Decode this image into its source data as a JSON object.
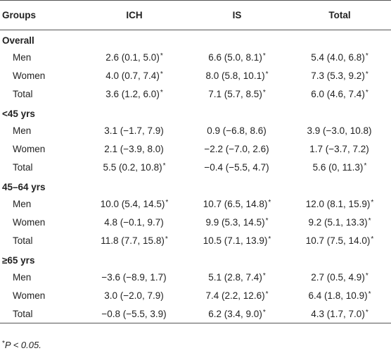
{
  "header": {
    "groups": "Groups",
    "ich": "ICH",
    "is": "IS",
    "total": "Total"
  },
  "sections": [
    {
      "title": "Overall",
      "rows": [
        {
          "label": "Men",
          "ich": "2.6 (0.1, 5.0)",
          "ich_sig": "*",
          "is": "6.6 (5.0, 8.1)",
          "is_sig": "*",
          "total": "5.4 (4.0, 6.8)",
          "total_sig": "*"
        },
        {
          "label": "Women",
          "ich": "4.0 (0.7, 7.4)",
          "ich_sig": "*",
          "is": "8.0 (5.8, 10.1)",
          "is_sig": "*",
          "total": "7.3 (5.3, 9.2)",
          "total_sig": "*"
        },
        {
          "label": "Total",
          "ich": "3.6 (1.2, 6.0)",
          "ich_sig": "*",
          "is": "7.1 (5.7, 8.5)",
          "is_sig": "*",
          "total": "6.0 (4.6, 7.4)",
          "total_sig": "*"
        }
      ]
    },
    {
      "title": "<45 yrs",
      "rows": [
        {
          "label": "Men",
          "ich": "3.1 (−1.7, 7.9)",
          "ich_sig": "",
          "is": "0.9 (−6.8, 8.6)",
          "is_sig": "",
          "total": "3.9 (−3.0, 10.8)",
          "total_sig": ""
        },
        {
          "label": "Women",
          "ich": "2.1 (−3.9, 8.0)",
          "ich_sig": "",
          "is": "−2.2 (−7.0, 2.6)",
          "is_sig": "",
          "total": "1.7 (−3.7, 7.2)",
          "total_sig": ""
        },
        {
          "label": "Total",
          "ich": "5.5 (0.2, 10.8)",
          "ich_sig": "*",
          "is": "−0.4 (−5.5, 4.7)",
          "is_sig": "",
          "total": "5.6 (0, 11.3)",
          "total_sig": "*"
        }
      ]
    },
    {
      "title": "45–64 yrs",
      "rows": [
        {
          "label": "Men",
          "ich": "10.0 (5.4, 14.5)",
          "ich_sig": "*",
          "is": "10.7 (6.5, 14.8)",
          "is_sig": "*",
          "total": "12.0 (8.1, 15.9)",
          "total_sig": "*"
        },
        {
          "label": "Women",
          "ich": "4.8 (−0.1, 9.7)",
          "ich_sig": "",
          "is": "9.9 (5.3, 14.5)",
          "is_sig": "*",
          "total": "9.2 (5.1, 13.3)",
          "total_sig": "*"
        },
        {
          "label": "Total",
          "ich": "11.8 (7.7, 15.8)",
          "ich_sig": "*",
          "is": "10.5 (7.1, 13.9)",
          "is_sig": "*",
          "total": "10.7 (7.5, 14.0)",
          "total_sig": "*"
        }
      ]
    },
    {
      "title": "≥65 yrs",
      "rows": [
        {
          "label": "Men",
          "ich": "−3.6 (−8.9, 1.7)",
          "ich_sig": "",
          "is": "5.1 (2.8, 7.4)",
          "is_sig": "*",
          "total": "2.7 (0.5, 4.9)",
          "total_sig": "*"
        },
        {
          "label": "Women",
          "ich": "3.0 (−2.0, 7.9)",
          "ich_sig": "",
          "is": "7.4 (2.2, 12.6)",
          "is_sig": "*",
          "total": "6.4 (1.8, 10.9)",
          "total_sig": "*"
        },
        {
          "label": "Total",
          "ich": "−0.8 (−5.5, 3.9)",
          "ich_sig": "",
          "is": "6.2 (3.4, 9.0)",
          "is_sig": "*",
          "total": "4.3 (1.7, 7.0)",
          "total_sig": "*"
        }
      ]
    }
  ],
  "footnote": {
    "star": "*",
    "text": "P < 0.05."
  }
}
